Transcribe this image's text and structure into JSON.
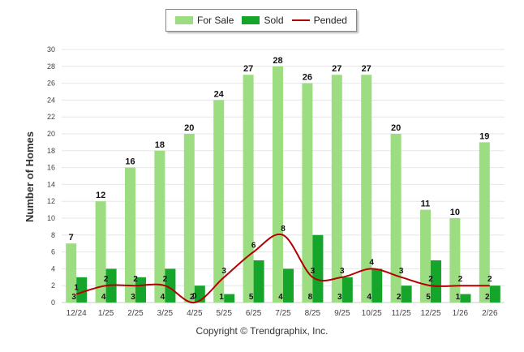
{
  "legend": {
    "for_sale": "For Sale",
    "sold": "Sold",
    "pended": "Pended"
  },
  "colors": {
    "for_sale": "#9ddd82",
    "sold": "#14a52a",
    "pended": "#b30000"
  },
  "footer": "Copyright © Trendgraphix, Inc.",
  "chart_data": {
    "type": "bar",
    "ylabel": "Number of Homes",
    "ylim": [
      0,
      30
    ],
    "yticks": [
      0,
      2,
      4,
      6,
      8,
      10,
      12,
      14,
      16,
      18,
      20,
      22,
      24,
      26,
      28,
      30
    ],
    "grid": true,
    "legend_position": "top-center",
    "categories": [
      "12/24",
      "1/25",
      "2/25",
      "3/25",
      "4/25",
      "5/25",
      "6/25",
      "7/25",
      "8/25",
      "9/25",
      "10/25",
      "11/25",
      "12/25",
      "1/26",
      "2/26"
    ],
    "series": [
      {
        "name": "For Sale",
        "type": "bar",
        "values": [
          7,
          12,
          16,
          18,
          20,
          24,
          27,
          28,
          26,
          27,
          27,
          20,
          11,
          10,
          19
        ]
      },
      {
        "name": "Sold",
        "type": "bar",
        "values": [
          3,
          4,
          3,
          4,
          2,
          1,
          5,
          4,
          8,
          3,
          4,
          2,
          5,
          1,
          2
        ]
      },
      {
        "name": "Pended",
        "type": "line",
        "values": [
          1,
          2,
          2,
          2,
          0,
          3,
          6,
          8,
          3,
          3,
          4,
          3,
          2,
          2,
          2
        ]
      }
    ]
  }
}
